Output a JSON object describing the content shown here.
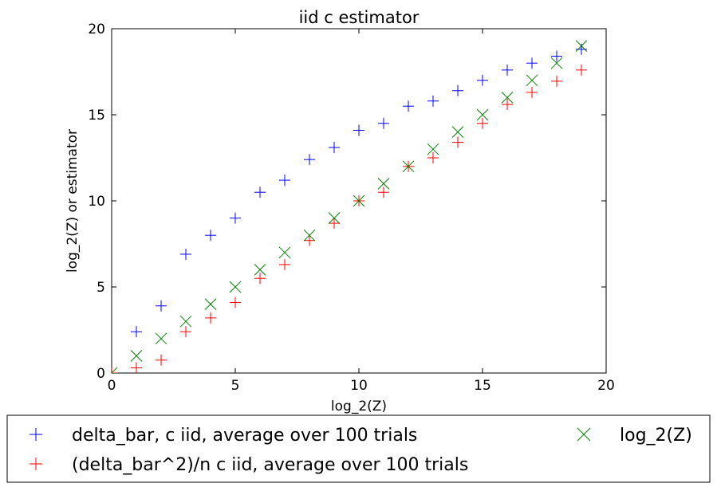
{
  "chart_data": {
    "type": "scatter",
    "title": "iid c estimator",
    "xlabel": "log_2(Z)",
    "ylabel": "log_2(Z) or estimator",
    "xlim": [
      0,
      20
    ],
    "ylim": [
      0,
      20
    ],
    "xticks": [
      0,
      5,
      10,
      15,
      20
    ],
    "yticks": [
      0,
      5,
      10,
      15,
      20
    ],
    "grid": false,
    "legend_position": "bottom-outside",
    "series": [
      {
        "name": "delta_bar, c iid, average over 100 trials",
        "marker": "plus",
        "color": "#0000ff",
        "x": [
          0,
          1,
          2,
          3,
          4,
          5,
          6,
          7,
          8,
          9,
          10,
          11,
          12,
          13,
          14,
          15,
          16,
          17,
          18,
          19
        ],
        "y": [
          0.0,
          2.4,
          3.9,
          6.9,
          8.0,
          9.0,
          10.5,
          11.2,
          12.4,
          13.1,
          14.1,
          14.5,
          15.5,
          15.8,
          16.4,
          17.0,
          17.6,
          18.0,
          18.4,
          18.8
        ]
      },
      {
        "name": "(delta_bar^2)/n c iid, average over 100 trials",
        "marker": "plus",
        "color": "#ff0000",
        "x": [
          0,
          1,
          2,
          3,
          4,
          5,
          6,
          7,
          8,
          9,
          10,
          11,
          12,
          13,
          14,
          15,
          16,
          17,
          18,
          19
        ],
        "y": [
          0.0,
          0.3,
          0.75,
          2.4,
          3.2,
          4.1,
          5.5,
          6.3,
          7.7,
          8.7,
          10.0,
          10.5,
          12.0,
          12.5,
          13.4,
          14.5,
          15.6,
          16.3,
          16.95,
          17.6
        ]
      },
      {
        "name": "log_2(Z)",
        "marker": "x",
        "color": "#008000",
        "x": [
          0,
          1,
          2,
          3,
          4,
          5,
          6,
          7,
          8,
          9,
          10,
          11,
          12,
          13,
          14,
          15,
          16,
          17,
          18,
          19
        ],
        "y": [
          0,
          1,
          2,
          3,
          4,
          5,
          6,
          7,
          8,
          9,
          10,
          11,
          12,
          13,
          14,
          15,
          16,
          17,
          18,
          19
        ]
      }
    ]
  }
}
